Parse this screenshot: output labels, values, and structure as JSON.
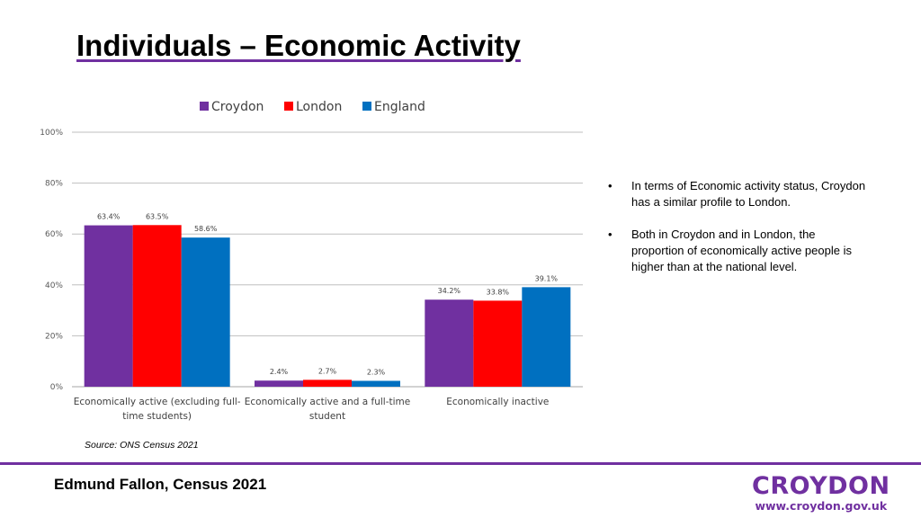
{
  "slide": {
    "title": "Individuals – Economic Activity",
    "source": "Source: ONS Census 2021",
    "footer": "Edmund Fallon, Census 2021",
    "logo_name": "CROYDON",
    "logo_url": "www.croydon.gov.uk"
  },
  "bullets": [
    {
      "marker": "•",
      "text": "In terms of Economic activity status, Croydon has a similar profile to London."
    },
    {
      "marker": "•",
      "text": "Both in Croydon and in London, the proportion of economically active people is higher than at the national level."
    }
  ],
  "colors": {
    "Croydon": "#7030a0",
    "London": "#ff0000",
    "England": "#0070c0",
    "brand": "#7030a0",
    "grid": "#bfbfbf"
  },
  "chart_data": {
    "type": "bar",
    "title": "",
    "xlabel": "",
    "ylabel": "",
    "categories": [
      [
        "Economically active (excluding full-",
        "time students)"
      ],
      [
        "Economically active and a full-time",
        "student"
      ],
      [
        "Economically inactive"
      ]
    ],
    "series": [
      {
        "name": "Croydon",
        "values": [
          63.4,
          2.4,
          34.2
        ],
        "labels": [
          "63.4%",
          "2.4%",
          "34.2%"
        ]
      },
      {
        "name": "London",
        "values": [
          63.5,
          2.7,
          33.8
        ],
        "labels": [
          "63.5%",
          "2.7%",
          "33.8%"
        ]
      },
      {
        "name": "England",
        "values": [
          58.6,
          2.3,
          39.1
        ],
        "labels": [
          "58.6%",
          "2.3%",
          "39.1%"
        ]
      }
    ],
    "ylim": [
      0,
      100
    ],
    "yticks": [
      "0%",
      "20%",
      "40%",
      "60%",
      "80%",
      "100%"
    ],
    "grid": true,
    "legend_position": "top"
  }
}
